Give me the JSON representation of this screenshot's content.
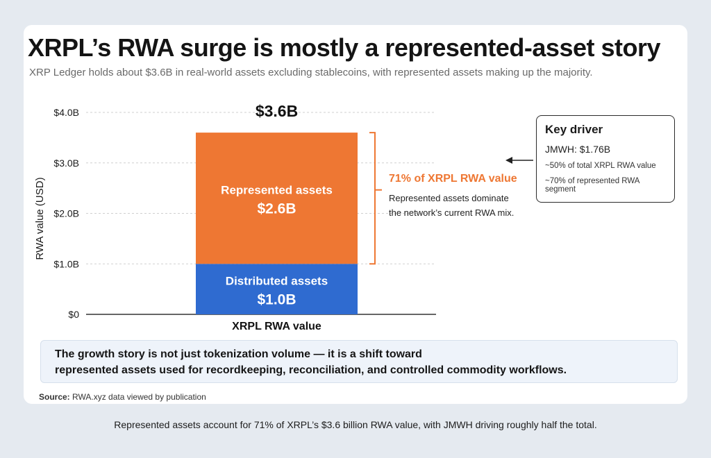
{
  "header": {
    "title": "XRPL’s RWA surge is mostly a represented-asset story",
    "subtitle": "XRP Ledger holds about $3.6B in real-world assets excluding stablecoins, with represented assets making up the majority."
  },
  "chart_data": {
    "type": "bar",
    "stacked": true,
    "categories": [
      "XRPL RWA value"
    ],
    "series": [
      {
        "name": "Distributed assets",
        "values": [
          1.0
        ],
        "label": "$1.0B",
        "color": "#2f6bd0"
      },
      {
        "name": "Represented assets",
        "values": [
          2.6
        ],
        "label": "$2.6B",
        "color": "#ee7733"
      }
    ],
    "total_label": "$3.6B",
    "ylabel": "RWA value (USD)",
    "ylim": [
      0,
      4.0
    ],
    "yticks": [
      {
        "value": 0,
        "label": "$0"
      },
      {
        "value": 1.0,
        "label": "$1.0B"
      },
      {
        "value": 2.0,
        "label": "$2.0B"
      },
      {
        "value": 3.0,
        "label": "$3.0B"
      },
      {
        "value": 4.0,
        "label": "$4.0B"
      }
    ],
    "grid": true,
    "annotation": {
      "headline": "71% of XRPL RWA value",
      "lines": [
        "Represented assets dominate",
        "the network’s current RWA mix."
      ],
      "color": "#ee7733"
    }
  },
  "key_driver": {
    "title": "Key driver",
    "line1": "JMWH: $1.76B",
    "line2": "~50% of total XRPL RWA value",
    "line3": "~70% of represented RWA segment"
  },
  "callout": {
    "line1": "The growth story is not just tokenization volume — it is a shift toward",
    "line2": "represented assets used for recordkeeping, reconciliation, and controlled commodity workflows."
  },
  "source": {
    "label": "Source:",
    "text": "RWA.xyz data viewed by publication"
  },
  "caption": "Represented assets account for 71% of XRPL’s $3.6 billion RWA value, with JMWH driving roughly half the total."
}
